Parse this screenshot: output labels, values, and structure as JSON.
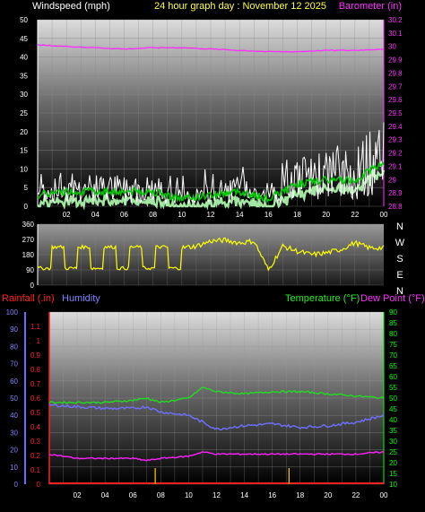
{
  "header": {
    "left_label": "Windspeed (mph)",
    "center_label": "24 hour graph day : November 12 2025",
    "right_label": "Barometer (in)"
  },
  "colors": {
    "windspeed": "#ffffff",
    "wind_avg": "#00c800",
    "wind_band": "#b4ffb4",
    "barometer": "#ff30ff",
    "direction": "#ffff00",
    "temperature": "#22dd22",
    "dewpoint": "#ff22ff",
    "humidity": "#7070ff",
    "rainfall": "#ff2020",
    "rain_mark": "#ffd000",
    "bottom_right_axis": "#00ff00"
  },
  "time_ticks": [
    "02",
    "04",
    "06",
    "08",
    "10",
    "12",
    "14",
    "16",
    "18",
    "20",
    "22",
    "00"
  ],
  "panel2": {
    "direction_labels": [
      "N",
      "W",
      "S",
      "E",
      "N"
    ]
  },
  "panel3": {
    "left_title": "Rainfall (.in)",
    "humidity_title": "Humidity",
    "temp_title": "Temperature (°F)",
    "dew_title": "Dew Point (°F)"
  },
  "chart_data": [
    {
      "type": "line",
      "title": "24 hour graph day : November 12 2025",
      "x_ticks": [
        "02",
        "04",
        "06",
        "08",
        "10",
        "12",
        "14",
        "16",
        "18",
        "20",
        "22",
        "00"
      ],
      "left_axis": {
        "label": "Windspeed (mph)",
        "range": [
          0,
          50
        ],
        "ticks": [
          0,
          5,
          10,
          15,
          20,
          25,
          30,
          35,
          40,
          45,
          50
        ]
      },
      "right_axis": {
        "label": "Barometer (in)",
        "range": [
          28.8,
          30.2
        ],
        "ticks": [
          "28.8",
          "28.9",
          "29",
          "29.1",
          "29.2",
          "29.3",
          "29.4",
          "29.5",
          "29.6",
          "29.7",
          "29.8",
          "29.9",
          "30",
          "30.1",
          "30.2"
        ]
      },
      "grid": true,
      "series": [
        {
          "name": "Windspeed",
          "axis": "left",
          "hours": [
            0,
            2,
            4,
            6,
            8,
            10,
            12,
            14,
            16,
            18,
            20,
            22,
            24
          ],
          "values": [
            3,
            4,
            4,
            4,
            4,
            2,
            3,
            4,
            2,
            6,
            7,
            7,
            12
          ]
        },
        {
          "name": "Barometer",
          "axis": "right",
          "hours": [
            0,
            2,
            4,
            6,
            8,
            10,
            12,
            14,
            16,
            18,
            20,
            22,
            24
          ],
          "values": [
            30.01,
            30.0,
            29.99,
            29.98,
            29.99,
            29.99,
            29.98,
            29.97,
            29.96,
            29.96,
            29.97,
            29.97,
            29.98
          ]
        }
      ]
    },
    {
      "type": "line",
      "x_ticks": [
        "02",
        "04",
        "06",
        "08",
        "10",
        "12",
        "14",
        "16",
        "18",
        "20",
        "22",
        "00"
      ],
      "left_axis": {
        "range": [
          0,
          360
        ],
        "ticks": [
          0,
          90,
          180,
          270,
          360
        ]
      },
      "right_axis": {
        "labels": [
          "N",
          "W",
          "S",
          "E",
          "N"
        ]
      },
      "series": [
        {
          "name": "Wind direction",
          "hours": [
            0,
            1,
            2,
            3,
            4,
            5,
            6,
            7,
            8,
            9,
            10,
            11,
            12,
            13,
            14,
            15,
            16,
            17,
            18,
            19,
            20,
            21,
            22,
            23,
            24
          ],
          "values": [
            140,
            200,
            90,
            230,
            100,
            220,
            90,
            220,
            100,
            200,
            220,
            230,
            260,
            265,
            250,
            260,
            90,
            230,
            200,
            180,
            190,
            210,
            250,
            220,
            220
          ]
        }
      ]
    },
    {
      "type": "line",
      "x_ticks": [
        "02",
        "04",
        "06",
        "08",
        "10",
        "12",
        "14",
        "16",
        "18",
        "20",
        "22",
        "00"
      ],
      "axes": [
        {
          "label": "Humidity",
          "range": [
            0,
            100
          ],
          "ticks": [
            0,
            10,
            20,
            30,
            40,
            50,
            60,
            70,
            80,
            90,
            100
          ]
        },
        {
          "label": "Rainfall (.in)",
          "range": [
            0,
            1.2
          ],
          "ticks": [
            "0",
            "0.1",
            "0.2",
            "0.3",
            "0.4",
            "0.5",
            "0.6",
            "0.7",
            "0.8",
            "0.9",
            "1",
            "1.1"
          ]
        },
        {
          "label": "Temperature (°F) / Dew Point (°F)",
          "range": [
            10,
            90
          ],
          "ticks": [
            10,
            15,
            20,
            25,
            30,
            35,
            40,
            45,
            50,
            55,
            60,
            65,
            70,
            75,
            80,
            85,
            90
          ]
        }
      ],
      "series": [
        {
          "name": "Temperature",
          "hours": [
            0,
            2,
            4,
            6,
            7,
            8,
            10,
            11,
            12,
            14,
            16,
            18,
            20,
            22,
            24
          ],
          "values": [
            48,
            48,
            48,
            49,
            50,
            48,
            50,
            55,
            53,
            52,
            53,
            53,
            52,
            51,
            50
          ]
        },
        {
          "name": "Humidity",
          "hours": [
            0,
            2,
            4,
            6,
            7,
            8,
            10,
            11,
            12,
            14,
            16,
            18,
            20,
            22,
            24
          ],
          "values": [
            46,
            45,
            44,
            44,
            45,
            42,
            40,
            36,
            32,
            34,
            35,
            33,
            34,
            36,
            40
          ]
        },
        {
          "name": "Dew Point",
          "hours": [
            0,
            2,
            4,
            6,
            7,
            8,
            10,
            11,
            12,
            14,
            16,
            18,
            20,
            22,
            24
          ],
          "values": [
            24,
            22,
            22,
            22,
            21,
            22,
            23,
            25,
            24,
            24,
            24,
            24,
            24,
            24,
            25
          ]
        },
        {
          "name": "Rainfall",
          "hours": [
            0,
            24
          ],
          "values": [
            0,
            0
          ]
        },
        {
          "name": "Rain events",
          "hours": [
            7.6,
            17.2
          ],
          "values": [
            0.1,
            0.1
          ]
        }
      ]
    }
  ]
}
